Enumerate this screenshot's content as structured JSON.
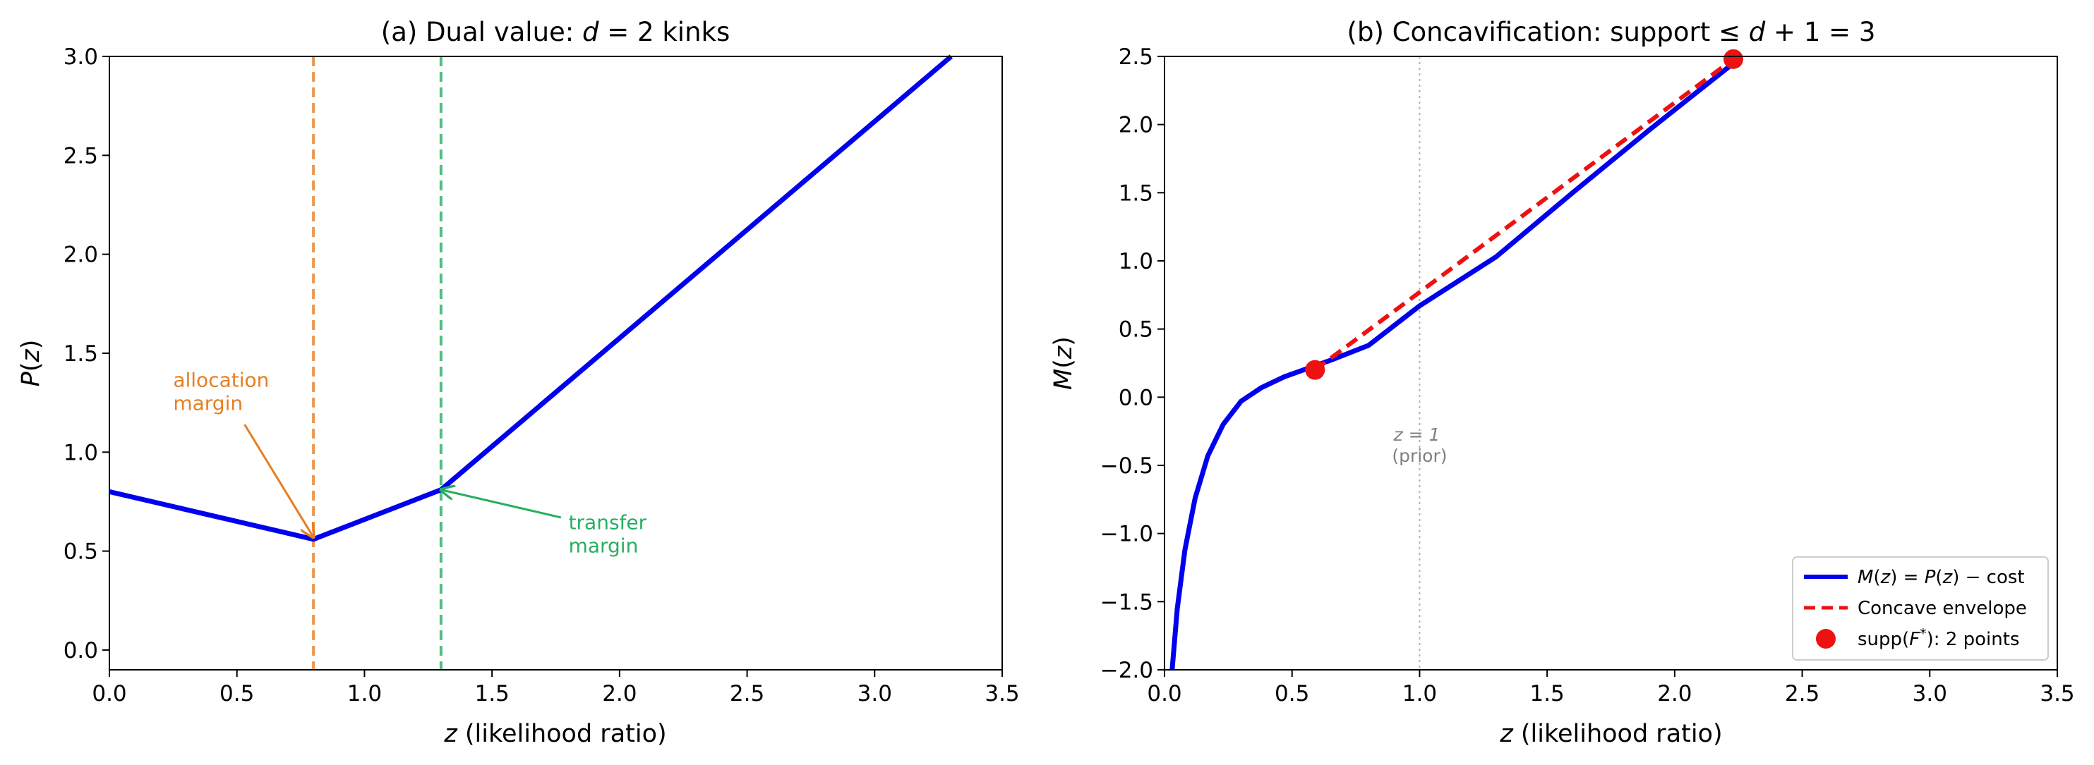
{
  "colors": {
    "curve": "#0000ee",
    "allocation": "#e67e22",
    "transfer": "#27ae60",
    "envelope": "#ee1111",
    "support": "#ee1111",
    "prior_line": "#b0b0b0",
    "prior_text": "#808080"
  },
  "chart_data": [
    {
      "type": "line",
      "title": "(a) Dual value: d = 2 kinks",
      "title_parts": [
        "(a) Dual value: ",
        "d",
        " = 2 kinks"
      ],
      "xlabel": "z (likelihood ratio)",
      "xlabel_parts": [
        "z",
        " (likelihood ratio)"
      ],
      "ylabel": "P(z)",
      "ylabel_parts": [
        "P",
        "(",
        "z",
        ")"
      ],
      "xlim": [
        0,
        3.5
      ],
      "ylim": [
        -0.1,
        3.0
      ],
      "xticks": [
        "0.0",
        "0.5",
        "1.0",
        "1.5",
        "2.0",
        "2.5",
        "3.0",
        "3.5"
      ],
      "yticks": [
        "0.0",
        "0.5",
        "1.0",
        "1.5",
        "2.0",
        "2.5",
        "3.0"
      ],
      "grid": false,
      "series": [
        {
          "x": [
            0.0,
            0.8,
            1.3,
            3.3
          ],
          "y": [
            0.8,
            0.56,
            0.81,
            3.0
          ]
        }
      ],
      "vlines": [
        {
          "x": 0.8,
          "style": "dashed",
          "color": "allocation"
        },
        {
          "x": 1.3,
          "style": "dashed",
          "color": "transfer"
        }
      ],
      "annotations": [
        {
          "lines": [
            "allocation",
            "margin"
          ],
          "text_x": 0.25,
          "text_y": 1.33,
          "point_x": 0.8,
          "point_y": 0.57,
          "color": "allocation",
          "arrow_from": [
            0.53,
            1.14
          ]
        },
        {
          "lines": [
            "transfer",
            "margin"
          ],
          "text_x": 1.8,
          "text_y": 0.61,
          "point_x": 1.3,
          "point_y": 0.81,
          "color": "transfer",
          "arrow_from": [
            1.77,
            0.67
          ]
        }
      ]
    },
    {
      "type": "line",
      "title": "(b) Concavification: support ≤ d + 1 = 3",
      "title_parts": [
        "(b) Concavification: support ≤ ",
        "d",
        " + 1 = 3"
      ],
      "xlabel": "z (likelihood ratio)",
      "xlabel_parts": [
        "z",
        " (likelihood ratio)"
      ],
      "ylabel": "M(z)",
      "ylabel_parts": [
        "M",
        "(",
        "z",
        ")"
      ],
      "xlim": [
        0,
        3.5
      ],
      "ylim": [
        -2.0,
        2.5
      ],
      "xticks": [
        "0.0",
        "0.5",
        "1.0",
        "1.5",
        "2.0",
        "2.5",
        "3.0",
        "3.5"
      ],
      "yticks": [
        "−2.0",
        "−1.5",
        "−1.0",
        "−0.5",
        "0.0",
        "0.5",
        "1.0",
        "1.5",
        "2.0",
        "2.5"
      ],
      "grid": false,
      "series": [
        {
          "name": "M(z) = P(z) − cost",
          "legend_parts": [
            "M",
            "(",
            "z",
            ") = ",
            "P",
            "(",
            "z",
            ") −  cost"
          ],
          "x": [
            0.03,
            0.05,
            0.08,
            0.12,
            0.17,
            0.23,
            0.3,
            0.38,
            0.47,
            0.56,
            0.65,
            0.8,
            1.0,
            1.3,
            1.6,
            1.9,
            2.23
          ],
          "y": [
            -2.0,
            -1.55,
            -1.12,
            -0.74,
            -0.43,
            -0.2,
            -0.03,
            0.07,
            0.15,
            0.21,
            0.27,
            0.38,
            0.67,
            1.03,
            1.5,
            1.96,
            2.45
          ]
        },
        {
          "name": "Concave envelope",
          "x": [
            0.59,
            2.23
          ],
          "y": [
            0.2,
            2.48
          ]
        },
        {
          "name": "supp(F*): 2 points",
          "legend_parts": [
            "supp(",
            "F",
            "*",
            "): 2 points"
          ],
          "x": [
            0.59,
            2.23
          ],
          "y": [
            0.2,
            2.48
          ]
        }
      ],
      "vlines": [
        {
          "x": 1.0,
          "style": "dotted",
          "color": "prior_line"
        }
      ],
      "annotations": [
        {
          "lines": [
            "z = 1",
            "(prior)"
          ],
          "text_x": 1.0,
          "text_y": -0.32
        }
      ],
      "legend": "lower-right"
    }
  ]
}
